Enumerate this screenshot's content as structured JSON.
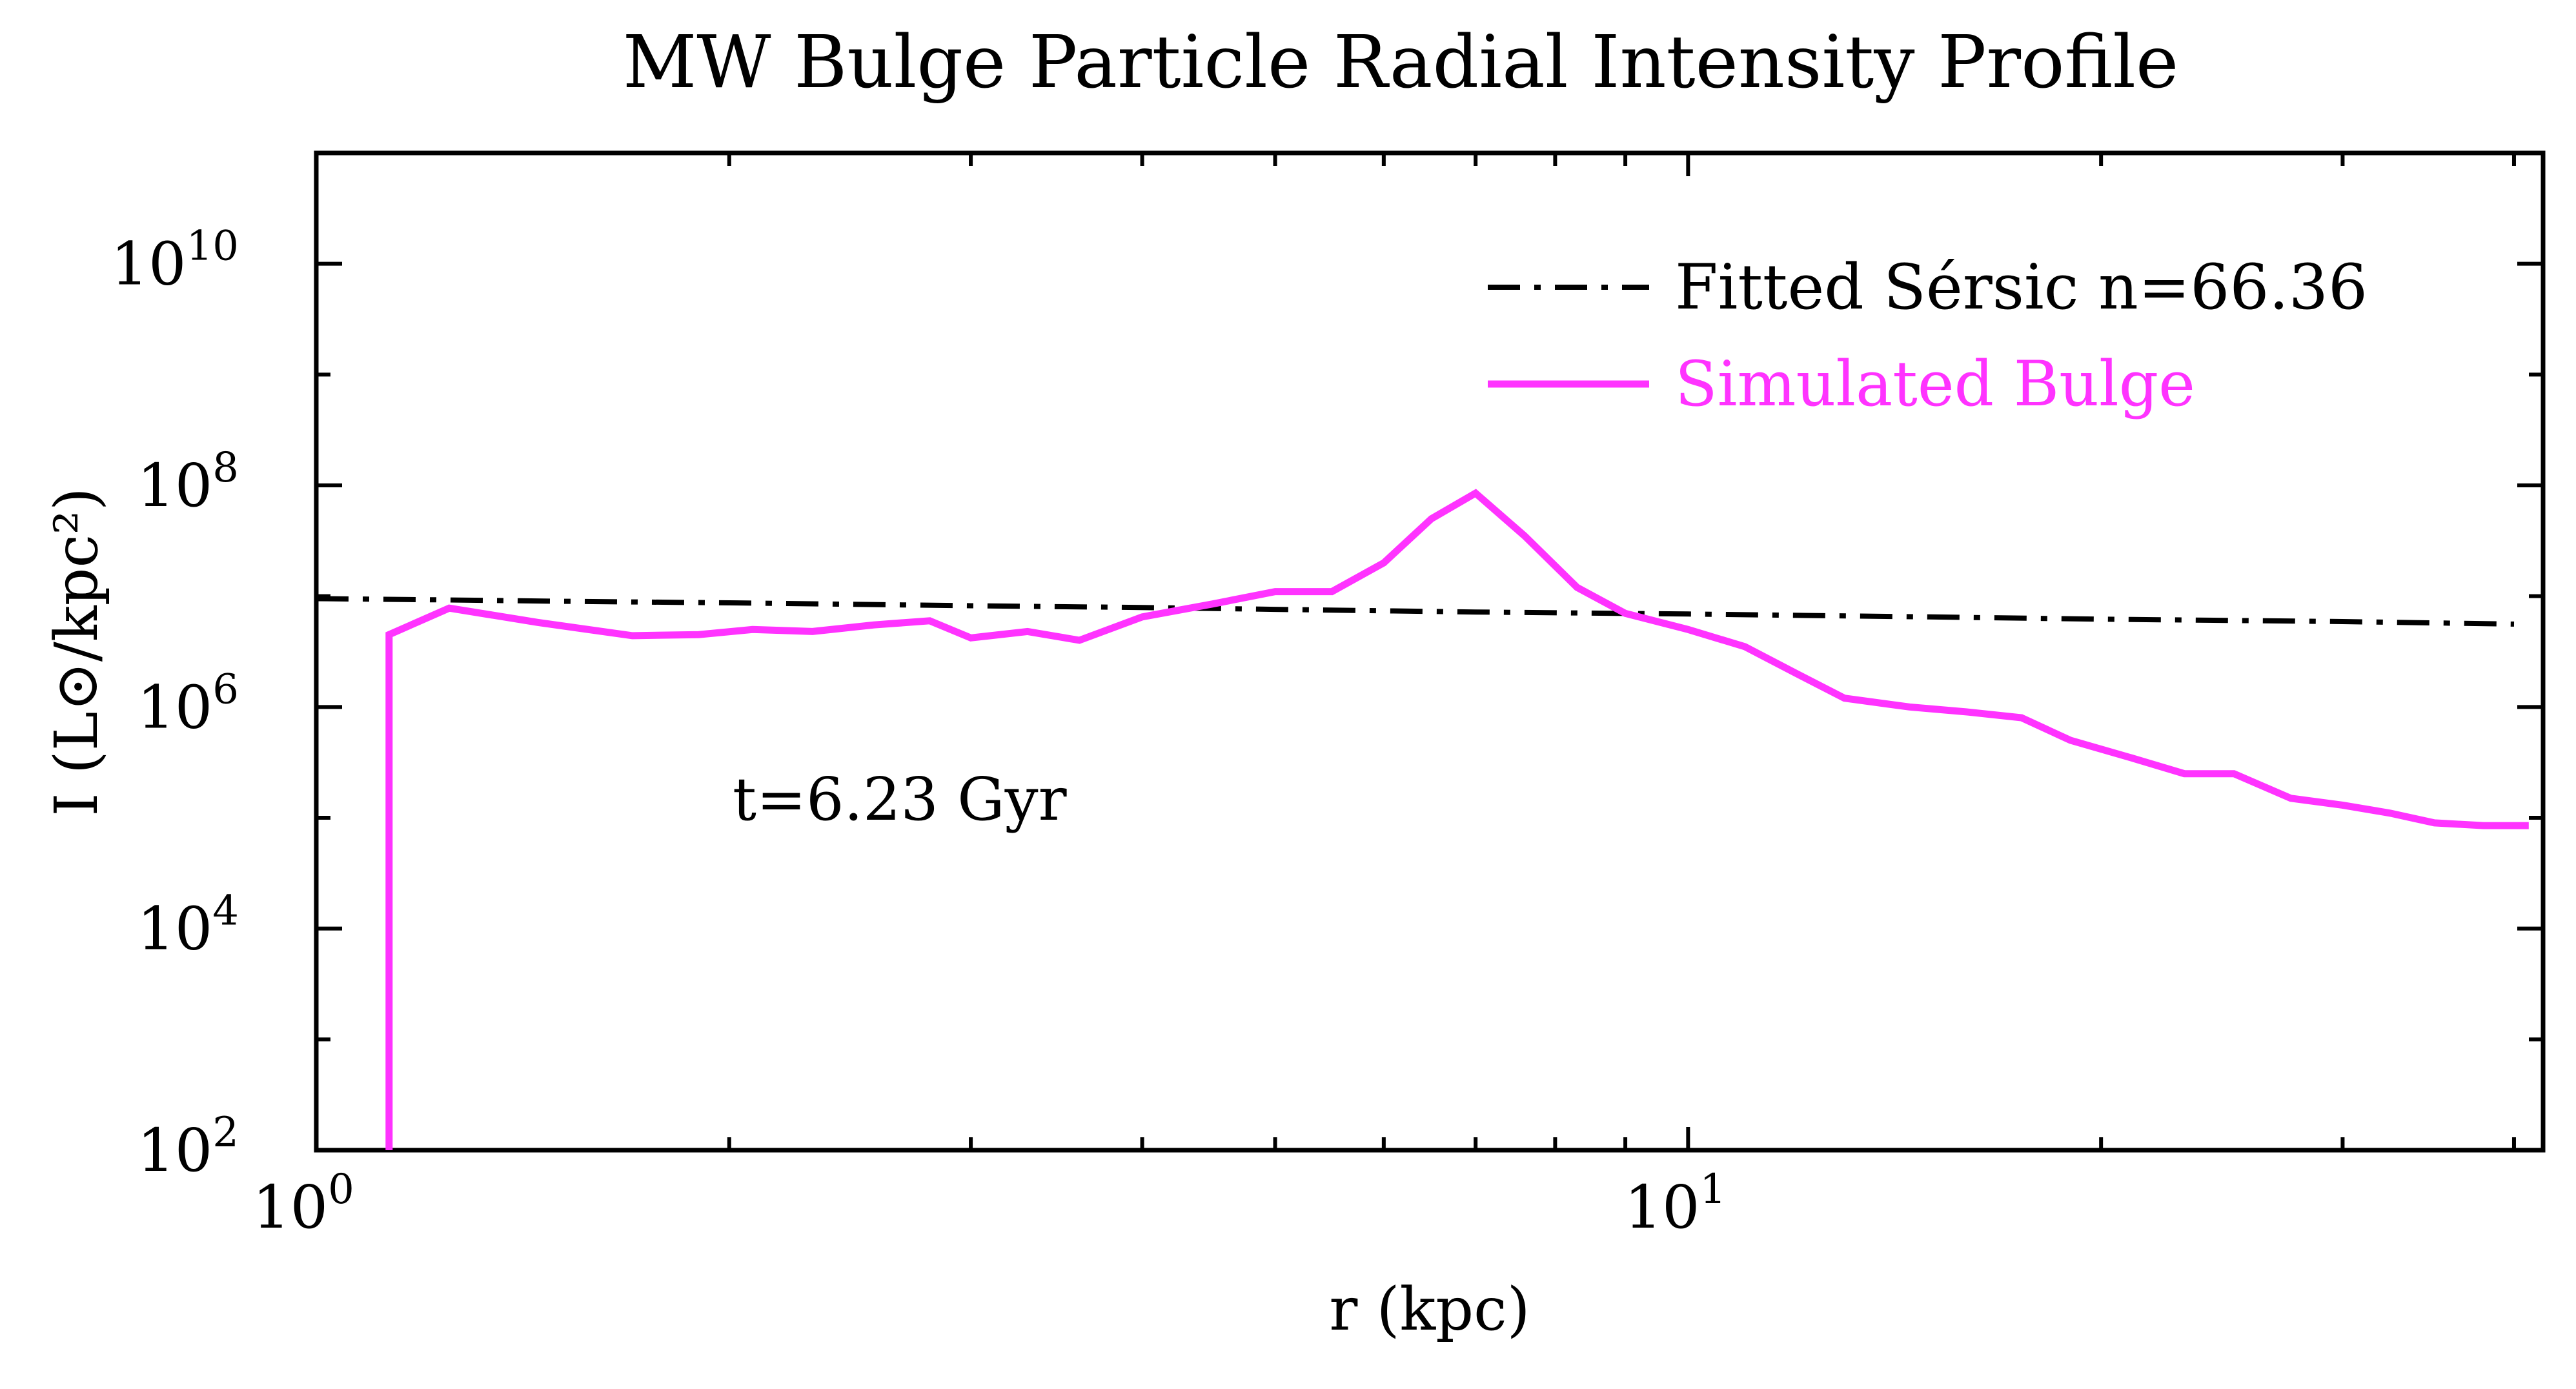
{
  "chart_data": {
    "type": "line",
    "title": "MW Bulge Particle Radial Intensity Profile",
    "xlabel": "r (kpc)",
    "ylabel": "I (L⊙/kpc²)",
    "xscale": "log",
    "yscale": "log",
    "xlim": [
      1.0,
      42.0
    ],
    "ylim": [
      100,
      100000000000
    ],
    "xticks": [
      {
        "value": 1,
        "base": "10",
        "exp": "0"
      },
      {
        "value": 10,
        "base": "10",
        "exp": "1"
      }
    ],
    "yticks": [
      {
        "value": 100,
        "base": "10",
        "exp": "2"
      },
      {
        "value": 10000,
        "base": "10",
        "exp": "4"
      },
      {
        "value": 1000000,
        "base": "10",
        "exp": "6"
      },
      {
        "value": 100000000,
        "base": "10",
        "exp": "8"
      },
      {
        "value": 10000000000,
        "base": "10",
        "exp": "10"
      }
    ],
    "grid": false,
    "legend_position": "top-right",
    "annotation": "t=6.23 Gyr",
    "series": [
      {
        "name": "Fitted Sérsic n=66.36",
        "color": "#000000",
        "style": "dash-dot",
        "x": [
          1.0,
          1.2,
          1.5,
          2.0,
          3.0,
          4.0,
          5.0,
          7.0,
          10.0,
          15.0,
          20.0,
          30.0,
          40.0
        ],
        "y": [
          9500000,
          9300000,
          9000000,
          8700000,
          8200000,
          7900000,
          7600000,
          7200000,
          6900000,
          6500000,
          6200000,
          5900000,
          5600000
        ]
      },
      {
        "name": "Simulated Bulge",
        "color": "#ff33ff",
        "style": "solid",
        "x": [
          1.13,
          1.13,
          1.25,
          1.45,
          1.7,
          1.9,
          2.08,
          2.3,
          2.55,
          2.8,
          3.0,
          3.3,
          3.6,
          4.0,
          4.5,
          5.0,
          5.5,
          6.0,
          6.5,
          7.0,
          7.6,
          8.3,
          9.0,
          10.0,
          11.0,
          12.0,
          13.0,
          14.5,
          16.0,
          17.5,
          19.0,
          21.0,
          23.0,
          25.0,
          27.5,
          30.0,
          32.5,
          35.0,
          38.0,
          41.0
        ],
        "y": [
          100,
          4500000,
          7800000,
          5800000,
          4400000,
          4500000,
          5000000,
          4800000,
          5500000,
          6000000,
          4200000,
          4800000,
          4000000,
          6500000,
          8500000,
          11000000,
          11000000,
          20000000,
          50000000,
          85000000,
          35000000,
          12000000,
          7000000,
          5000000,
          3500000,
          2000000,
          1200000,
          1000000,
          900000,
          800000,
          500000,
          350000,
          250000,
          250000,
          150000,
          130000,
          110000,
          90000,
          85000,
          85000
        ]
      }
    ]
  }
}
